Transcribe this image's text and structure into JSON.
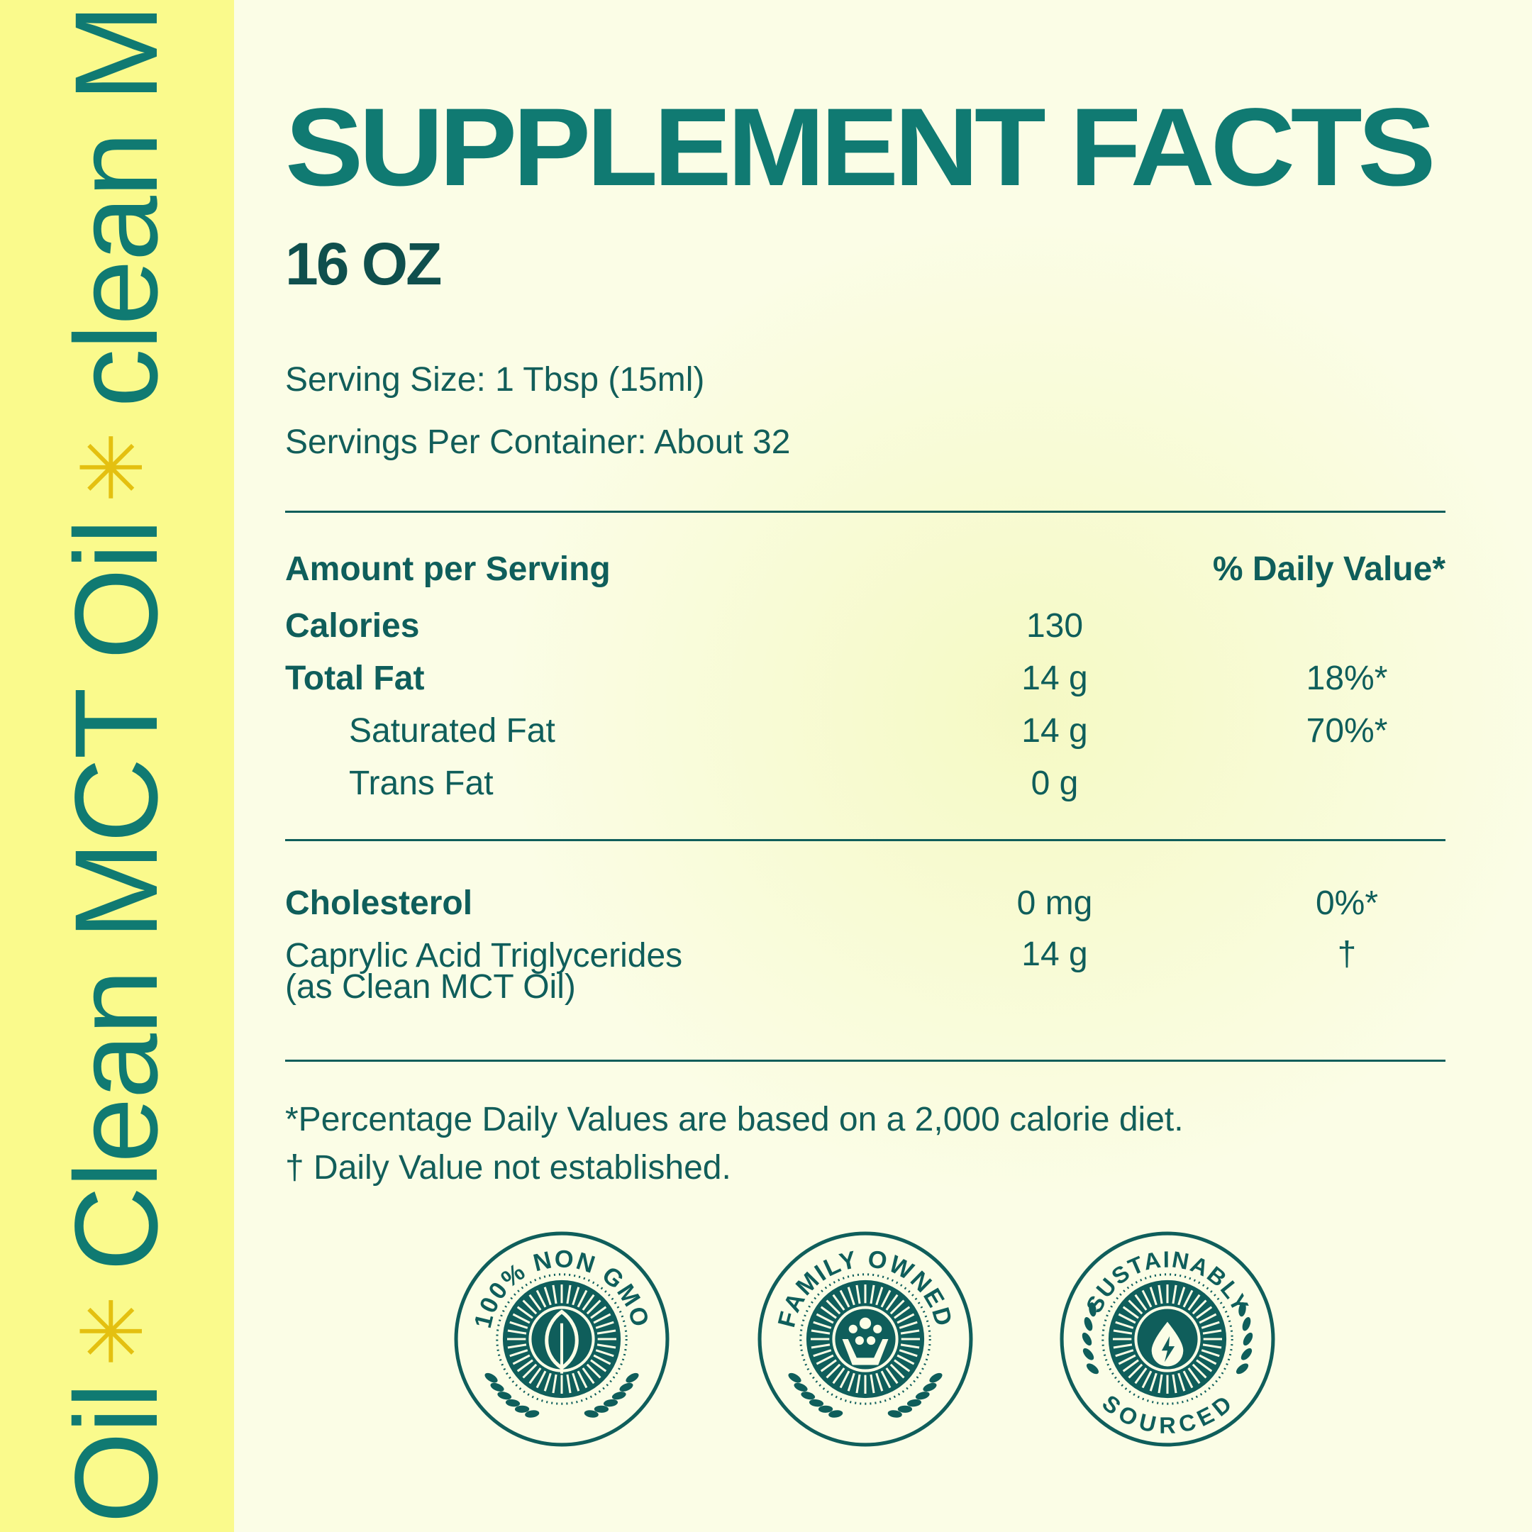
{
  "side_band": {
    "segments": [
      "Oil",
      "Clean MCT Oil",
      "clean MCT"
    ],
    "separator_icon": "sunburst-icon"
  },
  "header": {
    "title": "SUPPLEMENT FACTS",
    "net_content": "16 OZ"
  },
  "serving": {
    "size": "Serving Size: 1 Tbsp (15ml)",
    "per_container": "Servings Per Container: About 32"
  },
  "table": {
    "amount_header": "Amount per Serving",
    "dv_header": "% Daily Value*",
    "rows": [
      {
        "label": "Calories",
        "amount": "130",
        "dv": ""
      },
      {
        "label": "Total Fat",
        "amount": "14 g",
        "dv": "18%*"
      },
      {
        "label": "Saturated Fat",
        "amount": "14 g",
        "dv": "70%*"
      },
      {
        "label": "Trans Fat",
        "amount": "0 g",
        "dv": ""
      }
    ],
    "rows2": [
      {
        "label": "Cholesterol",
        "amount": "0 mg",
        "dv": "0%*"
      },
      {
        "label_line1": "Caprylic Acid Triglycerides",
        "label_line2": "(as Clean MCT Oil)",
        "amount": "14 g",
        "dv": "†"
      }
    ]
  },
  "footnotes": {
    "line1": "*Percentage Daily Values are based on a 2,000 calorie diet.",
    "line2": "† Daily Value not established."
  },
  "badges": [
    {
      "text": "100% NON GMO",
      "icon": "leaf-icon"
    },
    {
      "text": "FAMILY OWNED",
      "icon": "family-hands-icon"
    },
    {
      "text_top": "SUSTAINABLY",
      "text_bottom": "SOURCED",
      "icon": "drop-bolt-icon"
    }
  ],
  "colors": {
    "background": "#fbfde6",
    "band": "#fafa8c",
    "teal": "#107a72",
    "dark_teal": "#0f5e5b",
    "star": "#e4c010"
  }
}
